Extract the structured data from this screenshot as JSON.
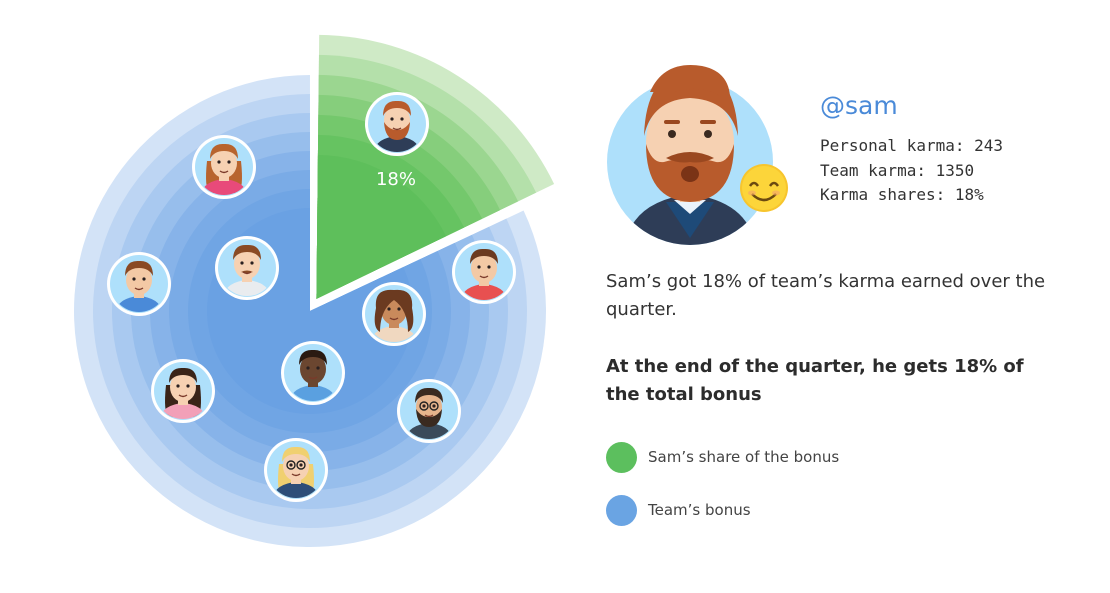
{
  "chart_data": {
    "type": "pie",
    "slices": [
      {
        "label": "Sam’s share of the bonus",
        "value": 18,
        "color": "#5cbf5e"
      },
      {
        "label": "Team’s bonus",
        "value": 82,
        "color": "#6aa4e3"
      }
    ],
    "data_labels": [
      {
        "text": "18%",
        "slice": 0
      }
    ],
    "legend": "right"
  },
  "profile": {
    "handle": "@sam",
    "personal_karma": "Personal karma: 243",
    "team_karma": "Team karma: 1350",
    "karma_shares": "Karma shares: 18%",
    "icon": "smiley-emoji-icon"
  },
  "description": "Sam’s got 18% of team’s karma earned over the quarter.",
  "bonus_statement": "At the end of the quarter, he gets 18% of the total bonus",
  "legend": [
    {
      "label": "Sam’s share of the bonus",
      "color": "#5cbf5e"
    },
    {
      "label": "Team’s bonus",
      "color": "#6aa4e3"
    }
  ],
  "team_avatars": [
    "sam-avatar-icon",
    "woman-avatar-icon",
    "man-avatar-icon",
    "mustache-man-avatar-icon",
    "man-red-shirt-avatar-icon",
    "curly-woman-avatar-icon",
    "dark-man-avatar-icon",
    "long-hair-woman-avatar-icon",
    "glasses-beard-man-avatar-icon",
    "blonde-woman-glasses-avatar-icon"
  ]
}
